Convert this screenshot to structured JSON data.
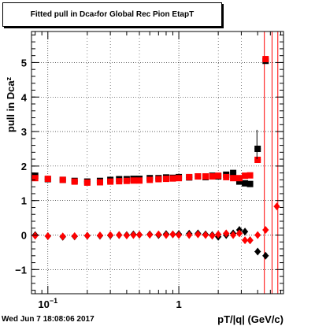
{
  "chart_data": {
    "type": "scatter",
    "title_prefix": "Fitted pull in Dca",
    "title_sub": "z",
    "title_suffix": " for Global Rec Pion EtapT",
    "ylabel": "pull in Dca",
    "ylabel_sub": "z",
    "xlabel": "pT/|q| (GeV/c)",
    "x_scale": "log",
    "xlim": [
      0.075,
      6.3
    ],
    "ylim": [
      -1.7,
      5.9
    ],
    "grid": true,
    "y_ticks": [
      -1,
      0,
      1,
      2,
      3,
      4,
      5
    ],
    "y_tick_labels": [
      "−1",
      "0",
      "1",
      "2",
      "3",
      "4",
      "5"
    ],
    "x_tick_labels": [
      {
        "value": 0.1,
        "base": "10",
        "exp": "−1"
      },
      {
        "value": 1,
        "base": "1",
        "exp": ""
      }
    ],
    "red_vertical_lines": [
      4.5,
      5.15,
      5.7
    ],
    "series": [
      {
        "color": "#000000",
        "marker": "square",
        "points": [
          [
            0.08,
            1.72
          ],
          [
            0.1,
            1.62
          ],
          [
            0.13,
            1.6
          ],
          [
            0.16,
            1.57
          ],
          [
            0.2,
            1.55
          ],
          [
            0.25,
            1.57
          ],
          [
            0.3,
            1.6
          ],
          [
            0.35,
            1.62
          ],
          [
            0.4,
            1.62
          ],
          [
            0.45,
            1.63
          ],
          [
            0.5,
            1.63
          ],
          [
            0.6,
            1.65
          ],
          [
            0.7,
            1.65
          ],
          [
            0.8,
            1.67
          ],
          [
            0.9,
            1.66
          ],
          [
            1.0,
            1.68
          ],
          [
            1.2,
            1.67
          ],
          [
            1.4,
            1.7
          ],
          [
            1.6,
            1.68
          ],
          [
            1.8,
            1.72
          ],
          [
            2.0,
            1.7
          ],
          [
            2.3,
            1.75
          ],
          [
            2.6,
            1.8
          ],
          [
            2.9,
            1.55
          ],
          [
            3.2,
            1.5
          ],
          [
            3.5,
            1.48
          ],
          [
            4.0,
            2.5
          ],
          [
            4.6,
            5.05
          ]
        ]
      },
      {
        "color": "#ff0000",
        "marker": "square",
        "points": [
          [
            0.08,
            1.65
          ],
          [
            0.1,
            1.63
          ],
          [
            0.13,
            1.6
          ],
          [
            0.16,
            1.55
          ],
          [
            0.2,
            1.52
          ],
          [
            0.25,
            1.53
          ],
          [
            0.3,
            1.55
          ],
          [
            0.35,
            1.56
          ],
          [
            0.4,
            1.57
          ],
          [
            0.45,
            1.58
          ],
          [
            0.5,
            1.58
          ],
          [
            0.6,
            1.6
          ],
          [
            0.7,
            1.62
          ],
          [
            0.8,
            1.63
          ],
          [
            0.9,
            1.64
          ],
          [
            1.0,
            1.65
          ],
          [
            1.2,
            1.68
          ],
          [
            1.4,
            1.7
          ],
          [
            1.6,
            1.7
          ],
          [
            1.8,
            1.7
          ],
          [
            2.0,
            1.72
          ],
          [
            2.3,
            1.68
          ],
          [
            2.6,
            1.65
          ],
          [
            2.9,
            1.65
          ],
          [
            3.2,
            1.72
          ],
          [
            3.5,
            1.73
          ],
          [
            4.0,
            2.18
          ],
          [
            4.6,
            5.1
          ]
        ]
      },
      {
        "color": "#000000",
        "marker": "diamond",
        "points": [
          [
            0.08,
            0.0
          ],
          [
            0.1,
            -0.03
          ],
          [
            0.13,
            -0.05
          ],
          [
            0.16,
            -0.04
          ],
          [
            0.2,
            -0.02
          ],
          [
            0.25,
            -0.02
          ],
          [
            0.3,
            -0.01
          ],
          [
            0.35,
            0.0
          ],
          [
            0.4,
            0.0
          ],
          [
            0.45,
            0.02
          ],
          [
            0.5,
            0.01
          ],
          [
            0.6,
            0.02
          ],
          [
            0.7,
            0.0
          ],
          [
            0.8,
            0.03
          ],
          [
            0.9,
            0.02
          ],
          [
            1.0,
            0.03
          ],
          [
            1.2,
            0.04
          ],
          [
            1.4,
            0.05
          ],
          [
            1.6,
            0.02
          ],
          [
            1.8,
            0.0
          ],
          [
            2.0,
            -0.05
          ],
          [
            2.3,
            0.0
          ],
          [
            2.6,
            0.05
          ],
          [
            2.9,
            0.15
          ],
          [
            3.2,
            0.1
          ],
          [
            3.5,
            -0.15
          ],
          [
            4.0,
            -0.48
          ],
          [
            4.6,
            -0.6
          ]
        ]
      },
      {
        "color": "#ff0000",
        "marker": "diamond",
        "points": [
          [
            0.08,
            -0.02
          ],
          [
            0.1,
            -0.03
          ],
          [
            0.13,
            -0.04
          ],
          [
            0.16,
            -0.03
          ],
          [
            0.2,
            -0.02
          ],
          [
            0.25,
            -0.01
          ],
          [
            0.3,
            0.0
          ],
          [
            0.35,
            0.0
          ],
          [
            0.4,
            -0.01
          ],
          [
            0.45,
            0.0
          ],
          [
            0.5,
            0.01
          ],
          [
            0.6,
            0.01
          ],
          [
            0.7,
            0.02
          ],
          [
            0.8,
            0.0
          ],
          [
            0.9,
            0.02
          ],
          [
            1.0,
            0.0
          ],
          [
            1.2,
            0.0
          ],
          [
            1.4,
            0.02
          ],
          [
            1.6,
            0.0
          ],
          [
            1.8,
            -0.02
          ],
          [
            2.0,
            0.02
          ],
          [
            2.3,
            0.05
          ],
          [
            2.6,
            0.0
          ],
          [
            2.9,
            0.05
          ],
          [
            3.2,
            -0.15
          ],
          [
            3.5,
            -0.15
          ],
          [
            4.0,
            0.0
          ],
          [
            4.6,
            0.15
          ],
          [
            5.6,
            0.83
          ]
        ]
      }
    ]
  },
  "footer": {
    "timestamp": "Wed Jun  7 18:08:06 2017"
  }
}
